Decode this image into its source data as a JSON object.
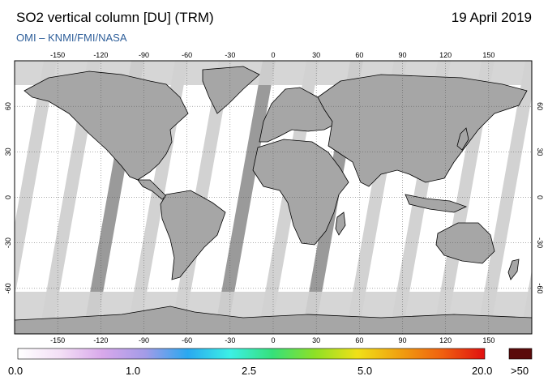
{
  "header": {
    "title": "SO2 vertical column [DU] (TRM)",
    "date": "19 April 2019",
    "credit": "OMI  –  KNMI/FMI/NASA"
  },
  "map": {
    "projection": "equirectangular",
    "lon_range": [
      -180,
      180
    ],
    "lat_range": [
      -90,
      90
    ],
    "lon_ticks": [
      "-150",
      "-120",
      "-90",
      "-60",
      "-30",
      "0",
      "30",
      "60",
      "90",
      "120",
      "150"
    ],
    "lat_ticks": [
      "60",
      "30",
      "0",
      "-30",
      "-60"
    ],
    "grid": "dotted",
    "colors": {
      "ocean": "#ffffff",
      "land": "#a6a6a6",
      "no_data_light": "#d2d2d2",
      "no_data_dark": "#9a9a9a",
      "coastline": "#000000"
    }
  },
  "colorbar": {
    "labels": [
      "0.0",
      "1.0",
      "2.5",
      "5.0",
      "20.0"
    ],
    "overflow_label": ">50",
    "overflow_color": "#5a0a0a",
    "gradient_colors": [
      "#ffffff",
      "#f3dff6",
      "#d8a8ea",
      "#a39be8",
      "#2aa8f0",
      "#3cf0e6",
      "#36e07a",
      "#8ee026",
      "#f0e018",
      "#f0a010",
      "#f06010",
      "#e01010"
    ]
  }
}
